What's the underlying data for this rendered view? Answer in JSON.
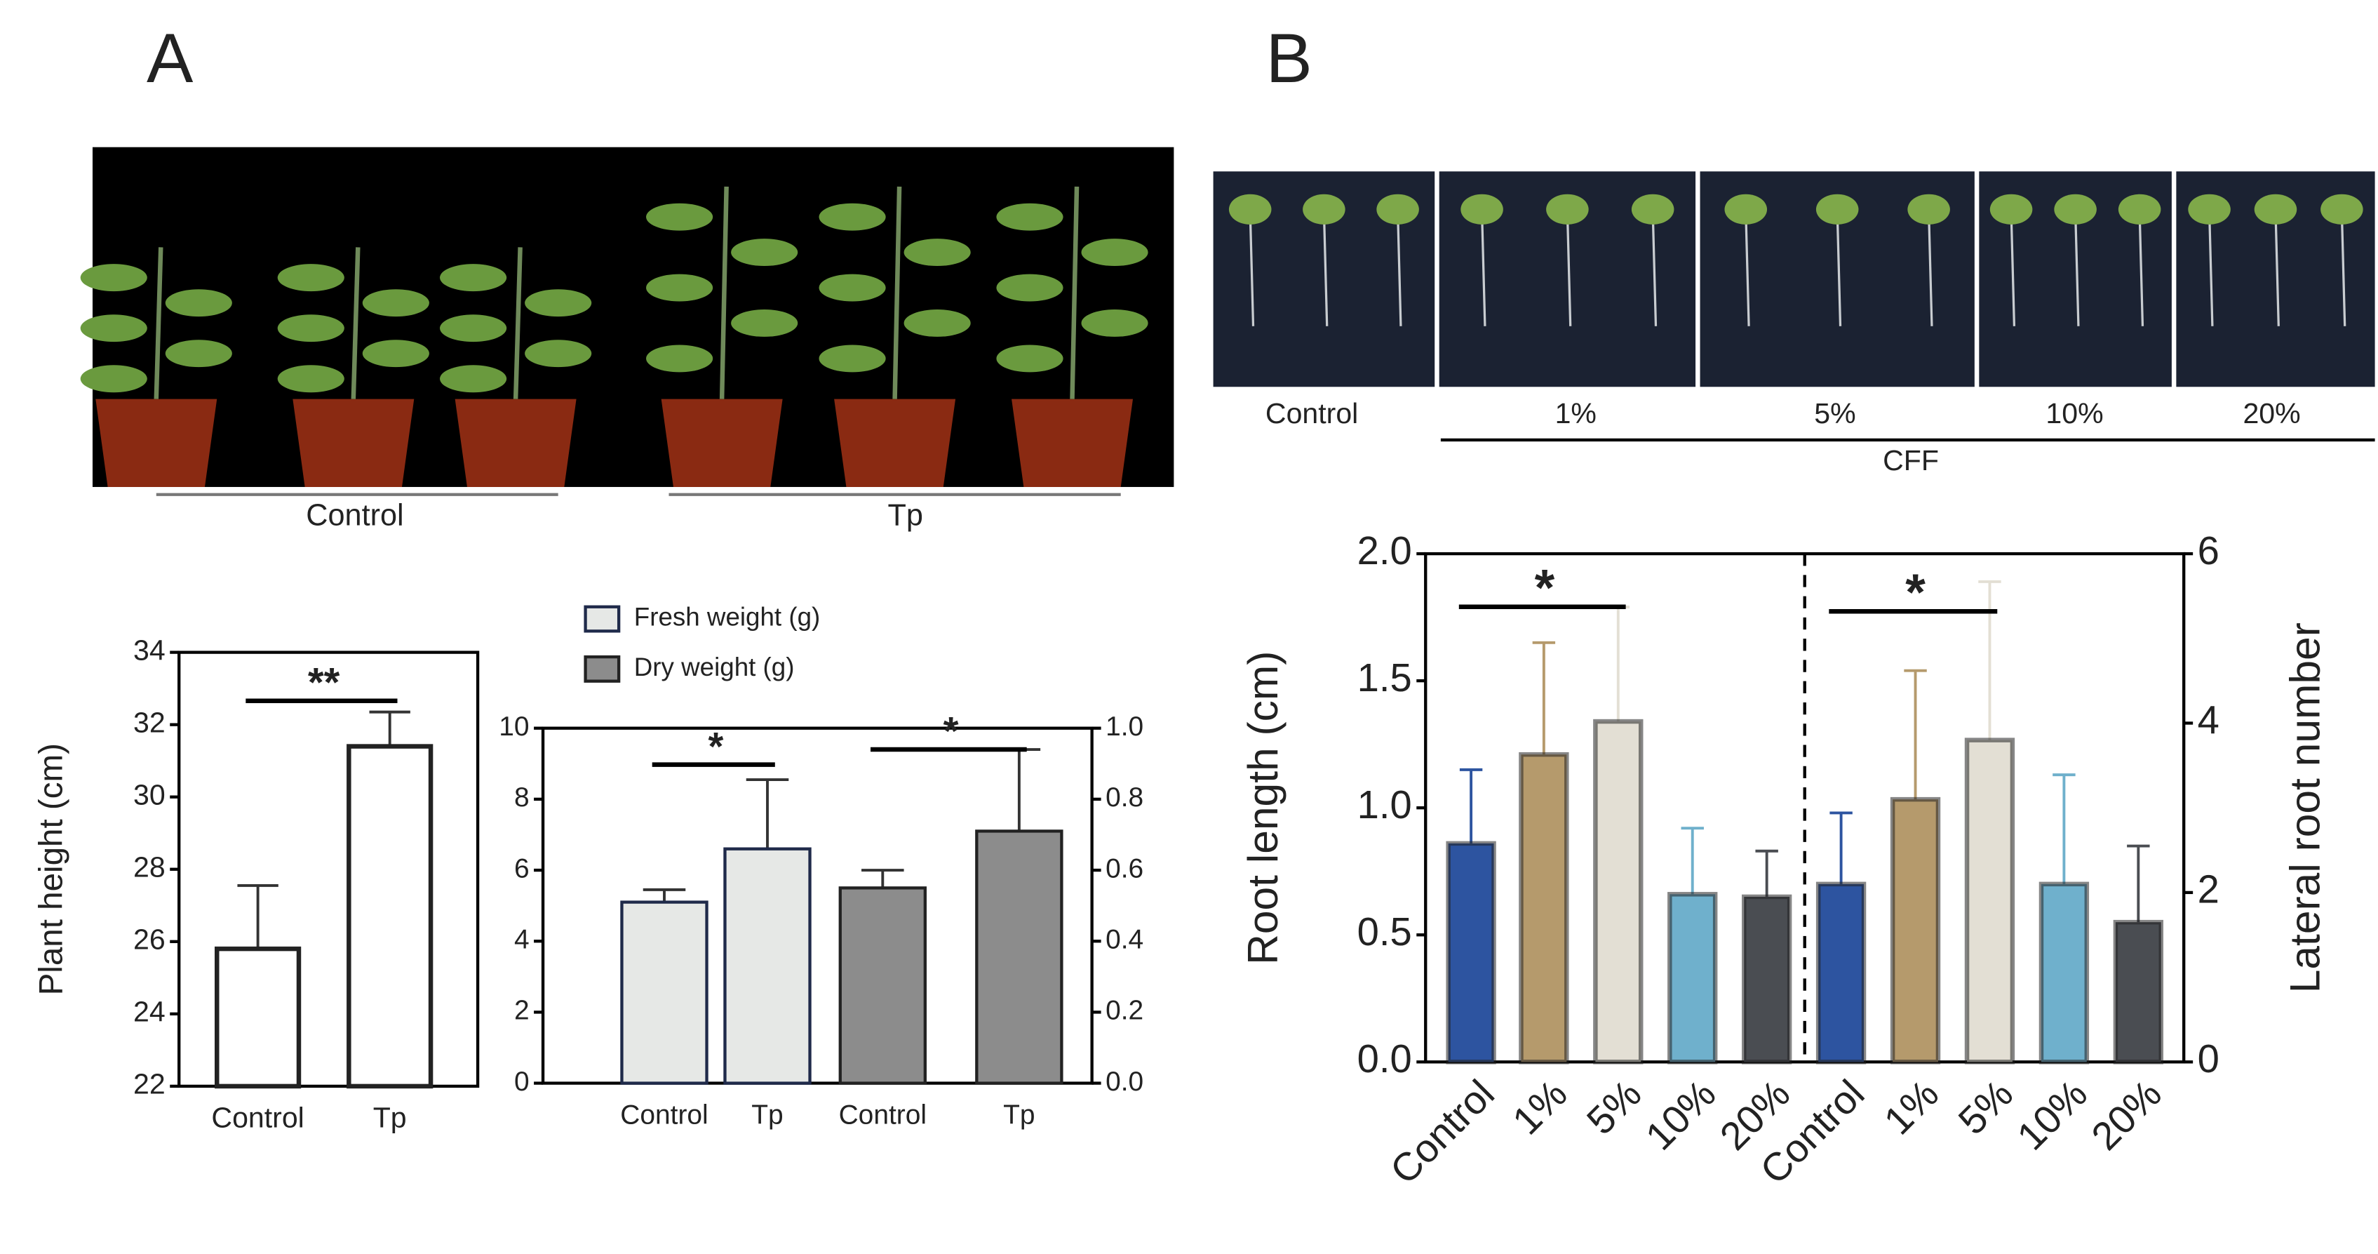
{
  "panel_labels": [
    "A",
    "B"
  ],
  "photo_a": {
    "labels": [
      "Control",
      "Tp"
    ]
  },
  "photo_b": {
    "labels": [
      "Control",
      "1%",
      "5%",
      "10%",
      "20%"
    ],
    "group": "CFF"
  },
  "chart_data": [
    {
      "type": "bar",
      "categories": [
        "Control",
        "Tp"
      ],
      "values": [
        25.8,
        31.4
      ],
      "errors": [
        1.75,
        0.95
      ],
      "color": "#ffffff",
      "ylabel": "Plant height (cm)",
      "ylim": [
        22,
        34
      ],
      "yticks": [
        22,
        24,
        26,
        28,
        30,
        32,
        34
      ],
      "annotations": [
        "**"
      ]
    },
    {
      "type": "bar",
      "categories": [
        "Control",
        "Tp",
        "Control",
        "Tp"
      ],
      "series": [
        {
          "name": "Fresh weight (g)",
          "color": "#e6e8e6",
          "values": [
            5.1,
            6.6,
            null,
            null
          ],
          "errors": [
            0.35,
            1.95,
            null,
            null
          ]
        },
        {
          "name": "Dry weight (g)",
          "color": "#8c8c8c",
          "axis": "y2",
          "values": [
            null,
            null,
            0.55,
            0.71
          ],
          "errors": [
            null,
            null,
            0.05,
            0.23
          ]
        }
      ],
      "ylim": [
        0,
        10
      ],
      "yticks": [
        0,
        2,
        4,
        6,
        8,
        10
      ],
      "y2lim": [
        0,
        1
      ],
      "y2ticks": [
        {
          "value": 0,
          "label": "0.0"
        },
        0.2,
        0.4,
        0.6,
        0.8,
        {
          "value": 1,
          "label": "1.0"
        }
      ],
      "annotations": [
        "*",
        "*"
      ],
      "legend": "top-left"
    },
    {
      "type": "bar",
      "categories": [
        "Control",
        "1%",
        "5%",
        "10%",
        "20%",
        "Control",
        "1%",
        "5%",
        "10%",
        "20%"
      ],
      "series": [
        {
          "colors": [
            "#2d54a0",
            "#b59a6c",
            "#e3dfd4",
            "#6fb0cc",
            "#4a4d52",
            null,
            null,
            null,
            null,
            null
          ],
          "values": [
            0.86,
            1.21,
            1.34,
            0.66,
            0.65,
            null,
            null,
            null,
            null,
            null
          ],
          "errors": [
            0.29,
            0.44,
            0.45,
            0.26,
            0.18,
            null,
            null,
            null,
            null,
            null
          ]
        },
        {
          "axis": "y2",
          "colors": [
            null,
            null,
            null,
            null,
            null,
            "#2d54a0",
            "#b59a6c",
            "#e3dfd4",
            "#6fb0cc",
            "#4a4d52"
          ],
          "values": [
            null,
            null,
            null,
            null,
            null,
            2.1,
            3.1,
            3.8,
            2.1,
            1.65
          ],
          "errors": [
            null,
            null,
            null,
            null,
            null,
            0.84,
            1.52,
            1.87,
            1.29,
            0.9
          ]
        }
      ],
      "ylabel": "Root length (cm)",
      "y2label": "Lateral root number",
      "ylim": [
        0,
        2
      ],
      "yticks": [
        {
          "value": 0,
          "label": "0.0"
        },
        0.5,
        {
          "value": 1,
          "label": "1.0"
        },
        1.5,
        {
          "value": 2,
          "label": "2.0"
        }
      ],
      "y2lim": [
        0,
        6
      ],
      "y2ticks": [
        0,
        2,
        4,
        6
      ],
      "annotations": [
        "*",
        "*"
      ]
    }
  ]
}
